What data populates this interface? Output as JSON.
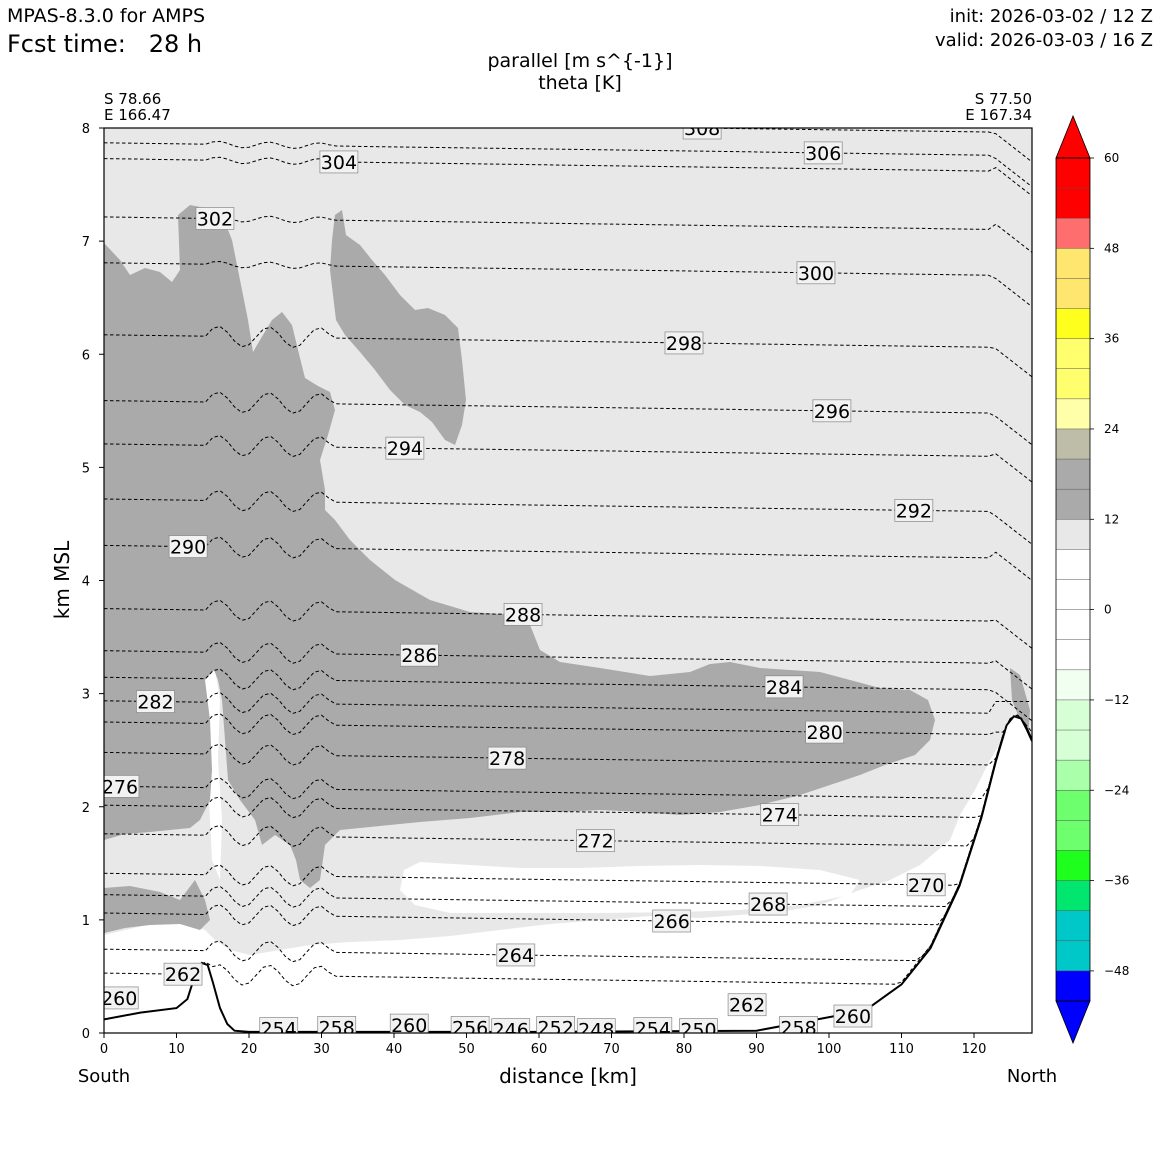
{
  "header": {
    "model": "MPAS-8.3.0 for AMPS",
    "fcst_time": "Fcst time:   28 h",
    "init": "init: 2026-03-02 / 12 Z",
    "valid": "valid: 2026-03-03 / 16 Z"
  },
  "chart_data": {
    "type": "cross-section",
    "title_line1": "parallel [m s^{-1}]",
    "title_line2": "theta [K]",
    "xlabel": "distance [km]",
    "ylabel": "km MSL",
    "xlim": [
      0,
      128
    ],
    "ylim": [
      0,
      8
    ],
    "x_ticks": [
      0,
      10,
      20,
      30,
      40,
      50,
      60,
      70,
      80,
      90,
      100,
      110,
      120
    ],
    "y_ticks": [
      0,
      1,
      2,
      3,
      4,
      5,
      6,
      7,
      8
    ],
    "left_end": {
      "lat": "S 78.66",
      "lon": "E 166.47",
      "direction": "South"
    },
    "right_end": {
      "lat": "S 77.50",
      "lon": "E 167.34",
      "direction": "North"
    },
    "colorbar": {
      "ticks": [
        60,
        48,
        36,
        24,
        12,
        0,
        -12,
        -24,
        -36,
        -48
      ],
      "tick_labels": [
        "60",
        "48",
        "36",
        "24",
        "12",
        "0",
        "−12",
        "−24",
        "−36",
        "−48"
      ],
      "bins": [
        {
          "from": 56,
          "to": 60,
          "color": "#ff0000"
        },
        {
          "from": 52,
          "to": 56,
          "color": "#ff0000"
        },
        {
          "from": 48,
          "to": 52,
          "color": "#ff6e6e"
        },
        {
          "from": 44,
          "to": 48,
          "color": "#ffe66e"
        },
        {
          "from": 40,
          "to": 44,
          "color": "#ffe66e"
        },
        {
          "from": 36,
          "to": 40,
          "color": "#ffff1e"
        },
        {
          "from": 32,
          "to": 36,
          "color": "#ffff6e"
        },
        {
          "from": 28,
          "to": 32,
          "color": "#ffff6e"
        },
        {
          "from": 24,
          "to": 28,
          "color": "#ffffaa"
        },
        {
          "from": 20,
          "to": 24,
          "color": "#bebea8"
        },
        {
          "from": 16,
          "to": 20,
          "color": "#aaaaaa"
        },
        {
          "from": 12,
          "to": 16,
          "color": "#aaaaaa"
        },
        {
          "from": 8,
          "to": 12,
          "color": "#e8e8e8"
        },
        {
          "from": 4,
          "to": 8,
          "color": "#ffffff"
        },
        {
          "from": 0,
          "to": 4,
          "color": "#ffffff"
        },
        {
          "from": -4,
          "to": 0,
          "color": "#ffffff"
        },
        {
          "from": -8,
          "to": -4,
          "color": "#ffffff"
        },
        {
          "from": -12,
          "to": -8,
          "color": "#f0fff0"
        },
        {
          "from": -16,
          "to": -12,
          "color": "#d6ffd6"
        },
        {
          "from": -20,
          "to": -16,
          "color": "#d6ffd6"
        },
        {
          "from": -24,
          "to": -20,
          "color": "#aaffaa"
        },
        {
          "from": -28,
          "to": -24,
          "color": "#6eff6e"
        },
        {
          "from": -32,
          "to": -28,
          "color": "#6eff6e"
        },
        {
          "from": -36,
          "to": -32,
          "color": "#1eff1e"
        },
        {
          "from": -40,
          "to": -36,
          "color": "#00e66e"
        },
        {
          "from": -44,
          "to": -40,
          "color": "#00c8c8"
        },
        {
          "from": -48,
          "to": -44,
          "color": "#00c8c8"
        },
        {
          "from": -52,
          "to": -48,
          "color": "#0000ff"
        }
      ],
      "over_color": "#ff0000",
      "under_color": "#0000ff"
    },
    "theta_contour_labels": [
      {
        "value": "308",
        "x": 82.5,
        "y": 8.0
      },
      {
        "value": "306",
        "x": 99.2,
        "y": 7.78
      },
      {
        "value": "304",
        "x": 32.4,
        "y": 7.7
      },
      {
        "value": "302",
        "x": 15.3,
        "y": 7.2
      },
      {
        "value": "300",
        "x": 98.2,
        "y": 6.72
      },
      {
        "value": "298",
        "x": 80.0,
        "y": 6.1
      },
      {
        "value": "296",
        "x": 100.4,
        "y": 5.5
      },
      {
        "value": "294",
        "x": 41.5,
        "y": 5.17
      },
      {
        "value": "292",
        "x": 111.7,
        "y": 4.62
      },
      {
        "value": "290",
        "x": 11.6,
        "y": 4.3
      },
      {
        "value": "288",
        "x": 57.8,
        "y": 3.7
      },
      {
        "value": "286",
        "x": 43.5,
        "y": 3.34
      },
      {
        "value": "284",
        "x": 93.8,
        "y": 3.06
      },
      {
        "value": "282",
        "x": 7.1,
        "y": 2.93
      },
      {
        "value": "280",
        "x": 99.4,
        "y": 2.66
      },
      {
        "value": "278",
        "x": 55.6,
        "y": 2.43
      },
      {
        "value": "276",
        "x": 2.2,
        "y": 2.18
      },
      {
        "value": "274",
        "x": 93.2,
        "y": 1.93
      },
      {
        "value": "272",
        "x": 67.8,
        "y": 1.7
      },
      {
        "value": "270",
        "x": 113.4,
        "y": 1.31
      },
      {
        "value": "268",
        "x": 91.6,
        "y": 1.14
      },
      {
        "value": "266",
        "x": 78.3,
        "y": 0.99
      },
      {
        "value": "264",
        "x": 56.8,
        "y": 0.69
      },
      {
        "value": "262",
        "x": 10.9,
        "y": 0.52
      },
      {
        "value": "262",
        "x": 88.7,
        "y": 0.25
      },
      {
        "value": "260",
        "x": 2.1,
        "y": 0.31
      },
      {
        "value": "260",
        "x": 103.3,
        "y": 0.15
      },
      {
        "value": "260",
        "x": 42.1,
        "y": 0.07
      },
      {
        "value": "258",
        "x": 32.1,
        "y": 0.05
      },
      {
        "value": "258",
        "x": 95.8,
        "y": 0.05
      },
      {
        "value": "256",
        "x": 50.5,
        "y": 0.05
      },
      {
        "value": "254",
        "x": 24.1,
        "y": 0.04
      },
      {
        "value": "254",
        "x": 75.7,
        "y": 0.04
      },
      {
        "value": "252",
        "x": 62.3,
        "y": 0.05
      },
      {
        "value": "250",
        "x": 82.0,
        "y": 0.03
      },
      {
        "value": "248",
        "x": 67.9,
        "y": 0.03
      },
      {
        "value": "246",
        "x": 56.1,
        "y": 0.03
      }
    ],
    "terrain": [
      [
        0,
        0.12
      ],
      [
        5,
        0.18
      ],
      [
        10,
        0.22
      ],
      [
        11.5,
        0.3
      ],
      [
        12.5,
        0.5
      ],
      [
        13.5,
        0.62
      ],
      [
        14.3,
        0.6
      ],
      [
        15,
        0.45
      ],
      [
        16,
        0.22
      ],
      [
        17,
        0.08
      ],
      [
        18,
        0.02
      ],
      [
        20,
        0.01
      ],
      [
        40,
        0.01
      ],
      [
        60,
        0.01
      ],
      [
        90,
        0.02
      ],
      [
        105,
        0.2
      ],
      [
        110,
        0.43
      ],
      [
        114,
        0.75
      ],
      [
        118,
        1.3
      ],
      [
        121,
        1.9
      ],
      [
        123,
        2.4
      ],
      [
        124.5,
        2.72
      ],
      [
        125.5,
        2.8
      ],
      [
        126.5,
        2.78
      ],
      [
        127.3,
        2.68
      ],
      [
        128,
        2.58
      ]
    ]
  }
}
